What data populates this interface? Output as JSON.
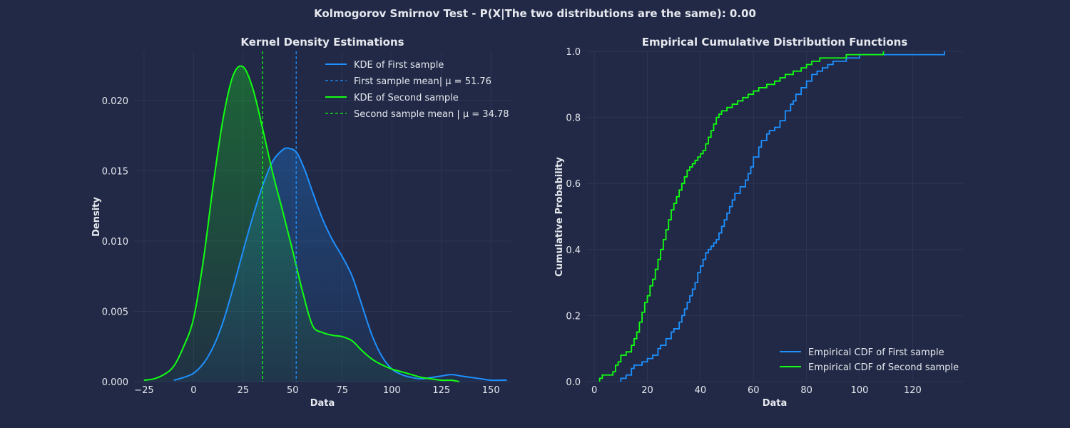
{
  "figure": {
    "suptitle": "Kolmogorov Smirnov Test - P(X|The two distributions are the same): 0.00"
  },
  "colors": {
    "background": "#212946",
    "grid": "#2b3555",
    "text": "#e6e8ee",
    "first": "#1e90ff",
    "second": "#12ff12"
  },
  "chart_data": [
    {
      "type": "area",
      "title": "Kernel Density Estimations",
      "xlabel": "Data",
      "ylabel": "Density",
      "xlim": [
        -30,
        160
      ],
      "ylim": [
        0,
        0.0235
      ],
      "xticks": [
        -25,
        0,
        25,
        50,
        75,
        100,
        125,
        150
      ],
      "xtick_labels": [
        "−25",
        "0",
        "25",
        "50",
        "75",
        "100",
        "125",
        "150"
      ],
      "yticks": [
        0,
        0.005,
        0.01,
        0.015,
        0.02
      ],
      "ytick_labels": [
        "0.000",
        "0.005",
        "0.010",
        "0.015",
        "0.020"
      ],
      "grid": true,
      "legend_position": "top-right",
      "series": [
        {
          "name": "KDE of First sample",
          "color": "#1e90ff",
          "x": [
            -10,
            -5,
            0,
            5,
            10,
            15,
            20,
            25,
            30,
            35,
            40,
            45,
            48,
            52,
            56,
            60,
            65,
            70,
            75,
            80,
            85,
            90,
            95,
            100,
            105,
            110,
            115,
            120,
            125,
            130,
            135,
            140,
            145,
            150,
            155,
            158
          ],
          "y": [
            0.0001,
            0.0003,
            0.0006,
            0.0013,
            0.0025,
            0.0043,
            0.0067,
            0.0093,
            0.0118,
            0.014,
            0.0157,
            0.0165,
            0.0166,
            0.0163,
            0.0151,
            0.0135,
            0.0116,
            0.0101,
            0.0089,
            0.0075,
            0.0054,
            0.0033,
            0.0018,
            0.0009,
            0.0005,
            0.0003,
            0.0002,
            0.0003,
            0.0004,
            0.0005,
            0.0004,
            0.0003,
            0.0002,
            0.0001,
            0.0001,
            0.0001
          ]
        },
        {
          "name": "KDE of Second sample",
          "color": "#12ff12",
          "x": [
            -25,
            -20,
            -15,
            -10,
            -5,
            0,
            5,
            10,
            15,
            20,
            25,
            30,
            35,
            40,
            45,
            50,
            55,
            60,
            65,
            70,
            75,
            80,
            85,
            90,
            95,
            100,
            105,
            110,
            115,
            120,
            125,
            130,
            134
          ],
          "y": [
            0.0001,
            0.0002,
            0.0005,
            0.0011,
            0.0025,
            0.0045,
            0.0087,
            0.0141,
            0.0188,
            0.0218,
            0.0224,
            0.0208,
            0.0179,
            0.0148,
            0.0121,
            0.0093,
            0.0064,
            0.004,
            0.0035,
            0.0033,
            0.0032,
            0.0029,
            0.0022,
            0.0016,
            0.0012,
            0.0009,
            0.0007,
            0.0005,
            0.0003,
            0.0002,
            0.0001,
            0.0001,
            0.0
          ]
        }
      ],
      "vlines": [
        {
          "name": "First sample mean| $\\mu = 51.76$",
          "label": "First sample mean| μ = 51.76",
          "x": 51.76,
          "color": "#1e90ff"
        },
        {
          "name": "Second sample mean | $\\mu = 34.78$",
          "label": "Second sample mean | μ = 34.78",
          "x": 34.78,
          "color": "#12ff12"
        }
      ],
      "legend": [
        {
          "label": "KDE of First sample",
          "style": "solid",
          "color": "#1e90ff"
        },
        {
          "label": "First sample mean| μ = 51.76",
          "style": "dashed",
          "color": "#1e90ff"
        },
        {
          "label": "KDE of Second sample",
          "style": "solid",
          "color": "#12ff12"
        },
        {
          "label": "Second sample mean | μ = 34.78",
          "style": "dashed",
          "color": "#12ff12"
        }
      ]
    },
    {
      "type": "line",
      "title": "Empirical Cumulative Distribution Functions",
      "xlabel": "Data",
      "ylabel": "Cumulative Probability",
      "xlim": [
        -3,
        139
      ],
      "ylim": [
        0,
        1.0
      ],
      "xticks": [
        0,
        20,
        40,
        60,
        80,
        100,
        120
      ],
      "xtick_labels": [
        "0",
        "20",
        "40",
        "60",
        "80",
        "100",
        "120"
      ],
      "yticks": [
        0,
        0.2,
        0.4,
        0.6,
        0.8,
        1.0
      ],
      "ytick_labels": [
        "0.0",
        "0.2",
        "0.4",
        "0.6",
        "0.8",
        "1.0"
      ],
      "grid": true,
      "legend_position": "bottom-right",
      "series": [
        {
          "name": "Empirical CDF of First sample",
          "color": "#1e90ff",
          "step": true,
          "x": [
            10,
            12,
            14,
            15,
            18,
            20,
            22,
            24,
            25,
            27,
            29,
            30,
            32,
            33,
            34,
            35,
            36,
            37,
            38,
            39,
            40,
            41,
            42,
            43,
            44,
            45,
            46,
            47,
            48,
            49,
            50,
            51,
            52,
            53,
            55,
            57,
            58,
            59,
            60,
            62,
            63,
            65,
            66,
            68,
            70,
            72,
            74,
            75,
            76,
            78,
            80,
            82,
            84,
            86,
            88,
            90,
            95,
            100,
            110,
            132
          ],
          "y": [
            0.01,
            0.02,
            0.04,
            0.05,
            0.06,
            0.07,
            0.08,
            0.1,
            0.11,
            0.13,
            0.15,
            0.16,
            0.18,
            0.2,
            0.22,
            0.24,
            0.26,
            0.28,
            0.3,
            0.33,
            0.35,
            0.37,
            0.39,
            0.4,
            0.41,
            0.42,
            0.43,
            0.45,
            0.47,
            0.49,
            0.51,
            0.53,
            0.55,
            0.57,
            0.59,
            0.61,
            0.63,
            0.65,
            0.68,
            0.71,
            0.73,
            0.75,
            0.76,
            0.77,
            0.79,
            0.82,
            0.84,
            0.85,
            0.87,
            0.89,
            0.91,
            0.93,
            0.94,
            0.95,
            0.96,
            0.97,
            0.98,
            0.99,
            0.99,
            1.0
          ]
        },
        {
          "name": "Empirical CDF of Second sample",
          "color": "#12ff12",
          "step": true,
          "x": [
            2,
            3,
            7,
            8,
            9,
            10,
            12,
            14,
            15,
            16,
            17,
            18,
            19,
            20,
            21,
            22,
            23,
            24,
            25,
            26,
            27,
            28,
            29,
            30,
            31,
            32,
            33,
            34,
            35,
            36,
            37,
            38,
            39,
            40,
            41,
            42,
            43,
            44,
            45,
            46,
            47,
            48,
            50,
            52,
            54,
            56,
            58,
            60,
            62,
            65,
            68,
            70,
            72,
            75,
            78,
            80,
            82,
            85,
            90,
            95,
            109
          ],
          "y": [
            0.01,
            0.02,
            0.03,
            0.05,
            0.06,
            0.08,
            0.09,
            0.11,
            0.13,
            0.15,
            0.18,
            0.21,
            0.24,
            0.26,
            0.29,
            0.31,
            0.34,
            0.37,
            0.4,
            0.43,
            0.46,
            0.49,
            0.52,
            0.54,
            0.56,
            0.58,
            0.6,
            0.62,
            0.64,
            0.65,
            0.66,
            0.67,
            0.68,
            0.69,
            0.7,
            0.72,
            0.74,
            0.76,
            0.78,
            0.8,
            0.81,
            0.82,
            0.83,
            0.84,
            0.85,
            0.86,
            0.87,
            0.88,
            0.89,
            0.9,
            0.91,
            0.92,
            0.93,
            0.94,
            0.95,
            0.96,
            0.97,
            0.98,
            0.98,
            0.99,
            1.0
          ]
        }
      ],
      "legend": [
        {
          "label": "Empirical CDF of First sample",
          "style": "solid",
          "color": "#1e90ff"
        },
        {
          "label": "Empirical CDF of Second sample",
          "style": "solid",
          "color": "#12ff12"
        }
      ]
    }
  ]
}
